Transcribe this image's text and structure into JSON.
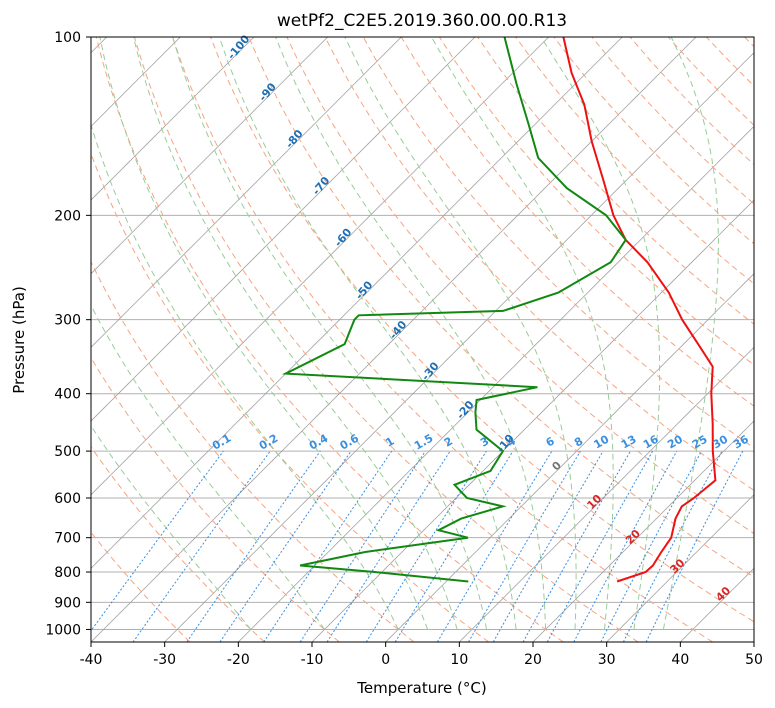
{
  "chart_data": {
    "type": "skew-t",
    "title": "wetPf2_C2E5.2019.360.00.00.R13",
    "xlabel": "Temperature (°C)",
    "ylabel": "Pressure (hPa)",
    "xlim": [
      -40,
      50
    ],
    "ylim": [
      1050,
      100
    ],
    "yscale": "log",
    "x_ticks": [
      -40,
      -30,
      -20,
      -10,
      0,
      10,
      20,
      30,
      40,
      50
    ],
    "y_ticks": [
      100,
      200,
      300,
      400,
      500,
      600,
      700,
      800,
      900,
      1000
    ],
    "grid": true,
    "colors": {
      "temperature": "#ee1111",
      "dewpoint": "#118811",
      "dry_adiabat": "#f4a582",
      "moist_adiabat": "#99cc99",
      "mixing_ratio": "#3a8fe0",
      "isotherm": "#a0a0a0"
    },
    "series": [
      {
        "line": "temperature",
        "points": [
          [
            830,
            23.2
          ],
          [
            800,
            25.8
          ],
          [
            780,
            25.9
          ],
          [
            740,
            25.2
          ],
          [
            700,
            24.6
          ],
          [
            650,
            22.6
          ],
          [
            620,
            21.8
          ],
          [
            600,
            22.3
          ],
          [
            560,
            22.8
          ],
          [
            500,
            18.5
          ],
          [
            450,
            14.8
          ],
          [
            400,
            10.5
          ],
          [
            360,
            7.0
          ],
          [
            330,
            2.0
          ],
          [
            300,
            -3.5
          ],
          [
            270,
            -9.0
          ],
          [
            240,
            -16.0
          ],
          [
            220,
            -22.0
          ],
          [
            200,
            -27.0
          ],
          [
            175,
            -33.0
          ],
          [
            150,
            -40.0
          ],
          [
            130,
            -46.0
          ],
          [
            115,
            -52.0
          ],
          [
            100,
            -58.0
          ]
        ]
      },
      {
        "line": "dewpoint",
        "points": [
          [
            830,
            3.0
          ],
          [
            800,
            -11.0
          ],
          [
            780,
            -22.0
          ],
          [
            740,
            -15.0
          ],
          [
            700,
            -3.0
          ],
          [
            680,
            -8.0
          ],
          [
            650,
            -6.5
          ],
          [
            620,
            -2.5
          ],
          [
            600,
            -8.5
          ],
          [
            570,
            -12.0
          ],
          [
            540,
            -9.0
          ],
          [
            500,
            -10.0
          ],
          [
            460,
            -16.5
          ],
          [
            430,
            -19.0
          ],
          [
            410,
            -20.5
          ],
          [
            390,
            -14.0
          ],
          [
            370,
            -50.0
          ],
          [
            330,
            -46.0
          ],
          [
            300,
            -48.0
          ],
          [
            295,
            -48.0
          ],
          [
            290,
            -29.0
          ],
          [
            270,
            -24.0
          ],
          [
            240,
            -21.0
          ],
          [
            220,
            -22.0
          ],
          [
            200,
            -28.0
          ],
          [
            180,
            -37.0
          ],
          [
            160,
            -45.0
          ],
          [
            140,
            -51.0
          ],
          [
            120,
            -58.0
          ],
          [
            100,
            -66.0
          ]
        ]
      }
    ],
    "dry_adiabats_C": [
      -30,
      -20,
      -10,
      0,
      10,
      20,
      30,
      40,
      50,
      60,
      70,
      80,
      90,
      100,
      110,
      120,
      130,
      140,
      150,
      160,
      170,
      180,
      190,
      200
    ],
    "moist_adiabat_labels": [
      {
        "label": "-100",
        "T": -100,
        "p": 105
      },
      {
        "label": "-90",
        "T": -90,
        "p": 125
      },
      {
        "label": "-80",
        "T": -80,
        "p": 150
      },
      {
        "label": "-70",
        "T": -70,
        "p": 180
      },
      {
        "label": "-60",
        "T": -60,
        "p": 220
      },
      {
        "label": "-50",
        "T": -50,
        "p": 270
      },
      {
        "label": "-40",
        "T": -40,
        "p": 315
      },
      {
        "label": "-30",
        "T": -30,
        "p": 370
      },
      {
        "label": "-20",
        "T": -20,
        "p": 430
      },
      {
        "label": "-10",
        "T": -10,
        "p": 490
      }
    ],
    "isotherm_labels": [
      {
        "label": "0",
        "T": 0,
        "p": 535,
        "color": "#777777"
      },
      {
        "label": "10",
        "T": 10,
        "p": 615,
        "color": "#d62728"
      },
      {
        "label": "20",
        "T": 20,
        "p": 705,
        "color": "#d62728"
      },
      {
        "label": "30",
        "T": 30,
        "p": 790,
        "color": "#d62728"
      },
      {
        "label": "40",
        "T": 40,
        "p": 880,
        "color": "#d62728"
      }
    ],
    "mixing_ratio_labels": [
      "0.1",
      "0.2",
      "0.4",
      "0.6",
      "1",
      "1.5",
      "2",
      "3",
      "4",
      "6",
      "8",
      "10",
      "13",
      "16",
      "20",
      "25",
      "30",
      "36"
    ]
  }
}
